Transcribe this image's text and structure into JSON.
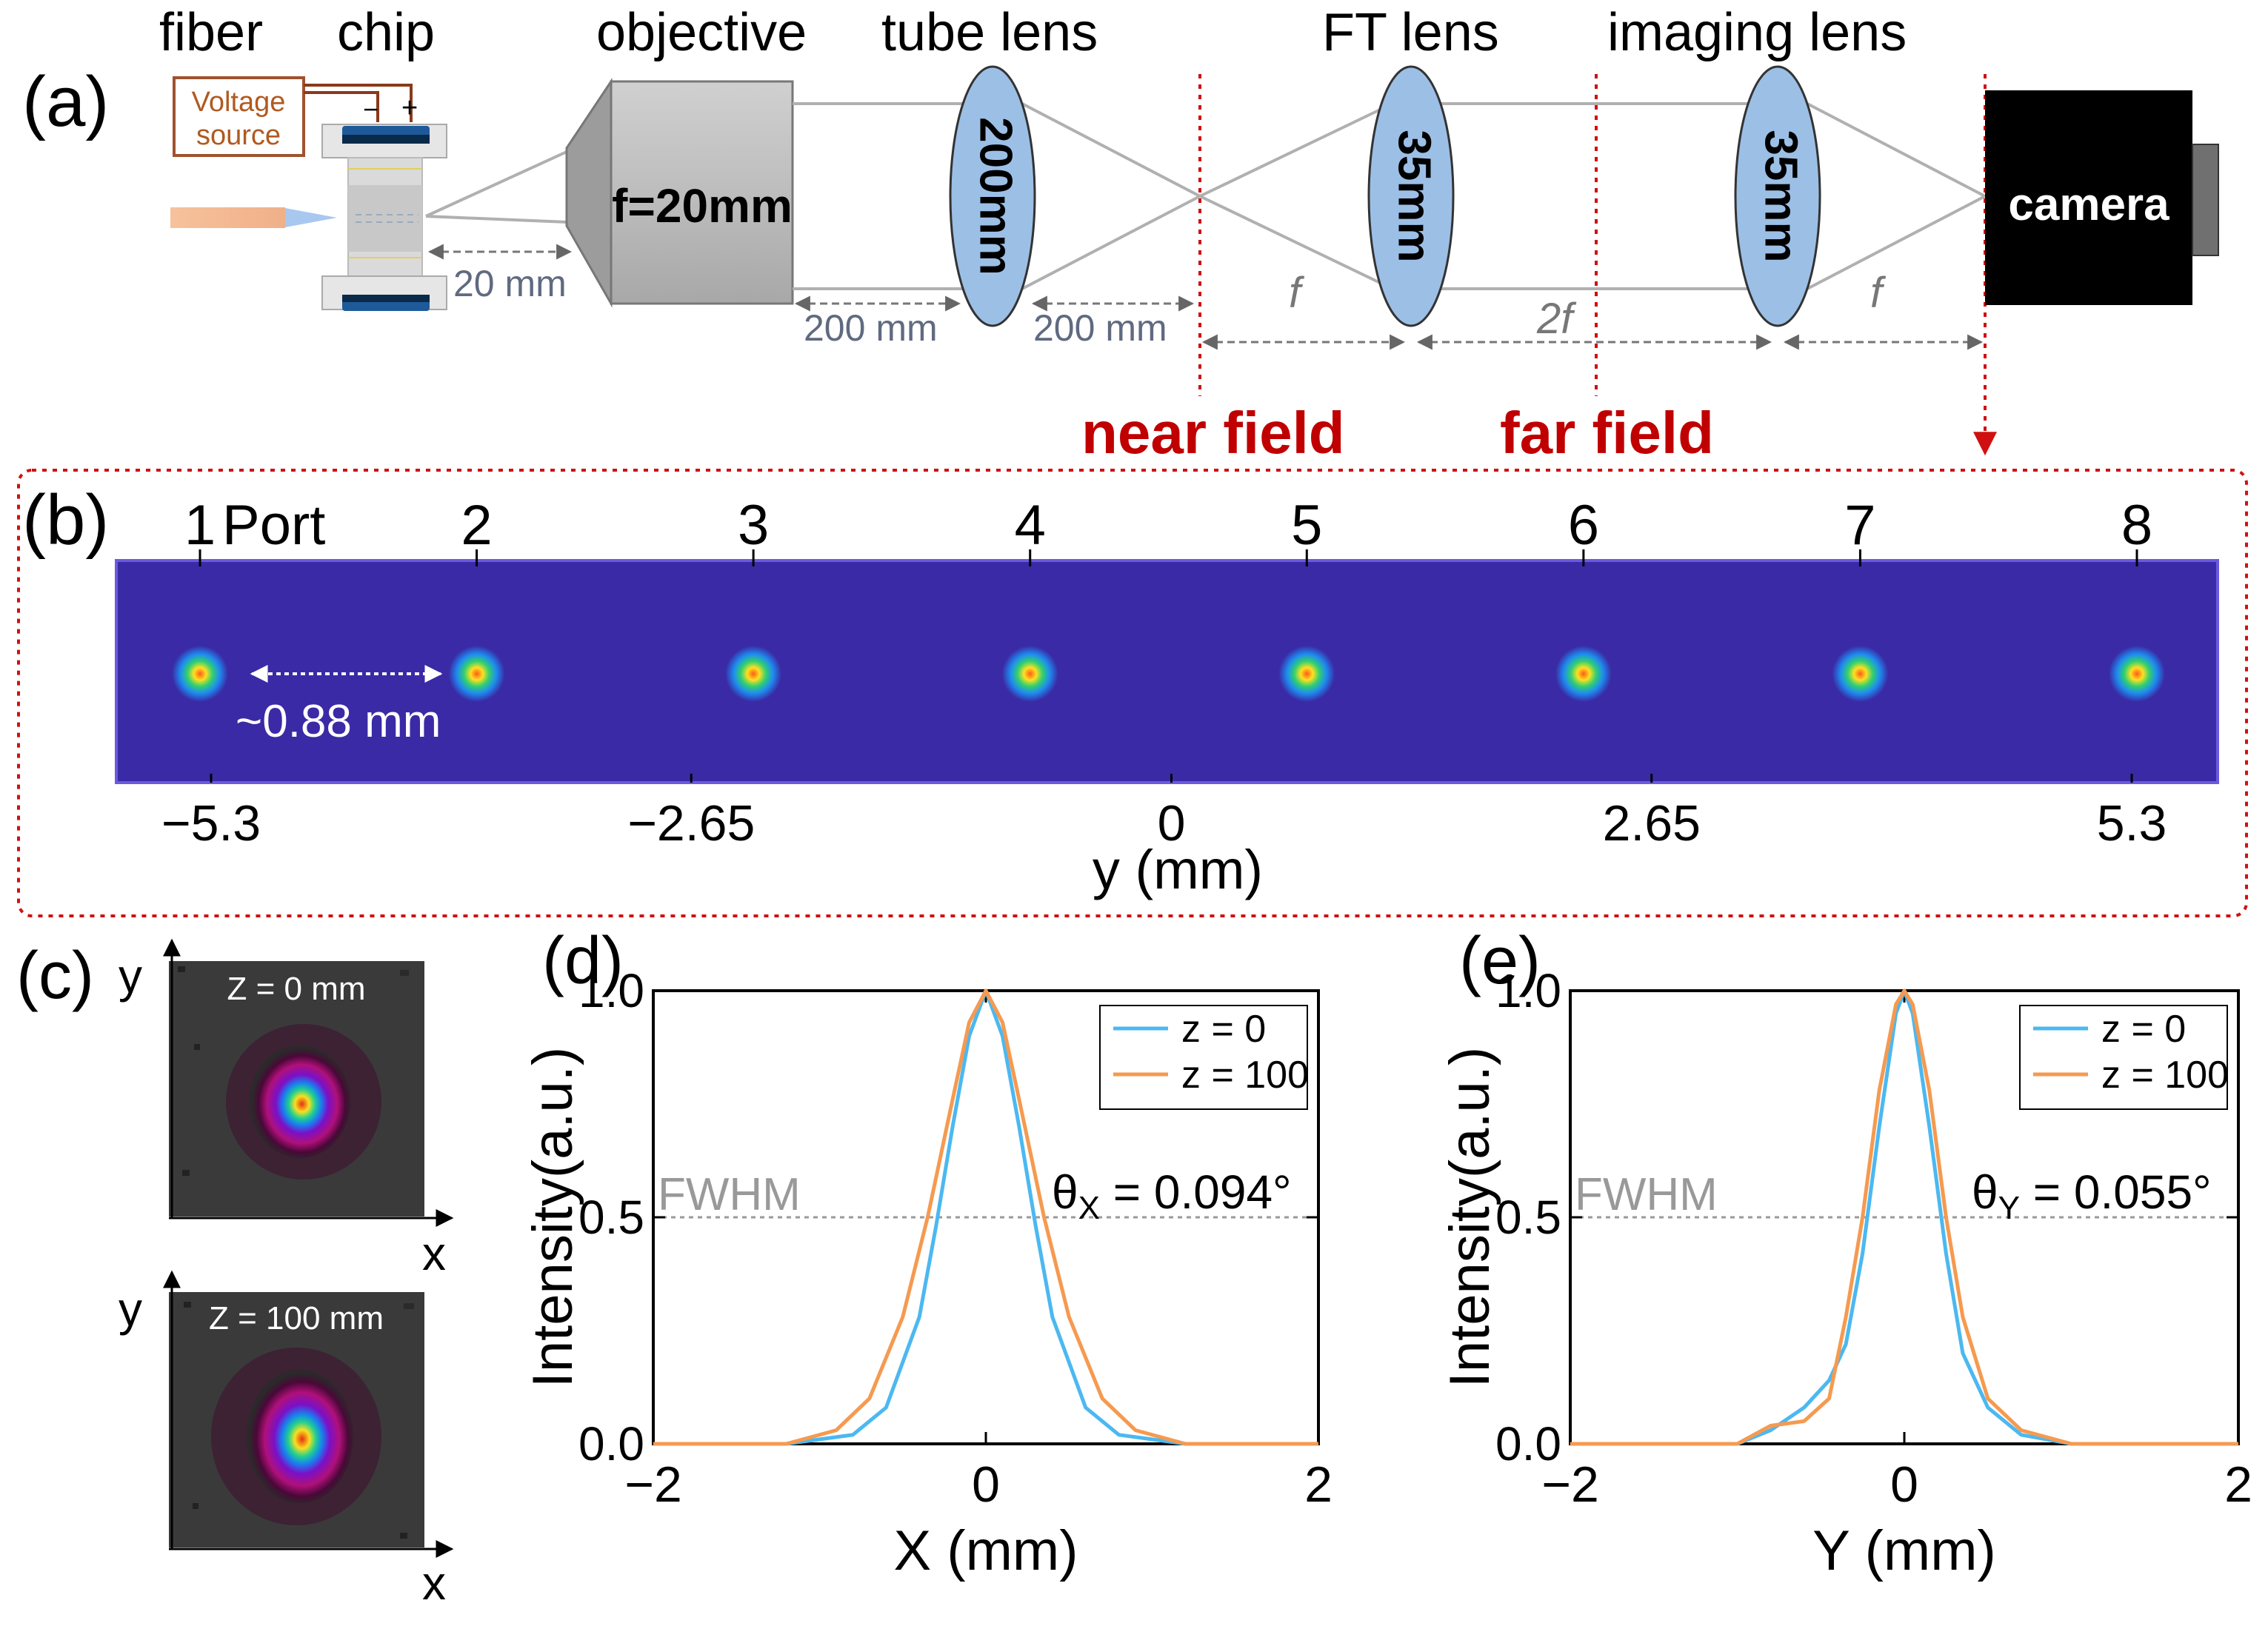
{
  "panel_a": {
    "label": "(a)",
    "headers": [
      "fiber",
      "chip",
      "objective",
      "tube lens",
      "FT lens",
      "imaging lens"
    ],
    "voltage_source": [
      "Voltage",
      "source"
    ],
    "minus": "−",
    "plus": "+",
    "dist_chip": "20 mm",
    "objective_text": "f=20mm",
    "tube_lens_text": "200mm",
    "dist_200_left": "200 mm",
    "dist_200_right": "200 mm",
    "ft_lens_text": "35mm",
    "imaging_lens_text": "35mm",
    "f_left": "f",
    "two_f": "2f",
    "f_right": "f",
    "camera_text": "camera",
    "near_field": "near field",
    "far_field": "far field",
    "colors": {
      "lens": "#9cbfe6",
      "red": "#c00000",
      "camera": "#000000"
    }
  },
  "panel_b": {
    "label": "(b)",
    "port_word": "Port",
    "port_numbers": [
      "1",
      "2",
      "3",
      "4",
      "5",
      "6",
      "7",
      "8"
    ],
    "spacing": "~0.88 mm",
    "x_ticks": [
      "−5.3",
      "−2.65",
      "0",
      "2.65",
      "5.3"
    ],
    "x_label": "y (mm)",
    "background_color": "#3a2aa6"
  },
  "panel_c": {
    "label": "(c)",
    "images": [
      {
        "title": "Z = 0 mm",
        "ylabel": "y",
        "xlabel": "x"
      },
      {
        "title": "Z = 100 mm",
        "ylabel": "y",
        "xlabel": "x"
      }
    ]
  },
  "chart_data": [
    {
      "type": "line",
      "panel": "(d)",
      "xlabel": "X (mm)",
      "ylabel": "Intensity(a.u.)",
      "xlim": [
        -2,
        2
      ],
      "ylim": [
        0,
        1
      ],
      "x_ticks": [
        "−2",
        "0",
        "2"
      ],
      "y_ticks": [
        "0.0",
        "0.5",
        "1.0"
      ],
      "fwhm_label": "FWHM",
      "annotation": {
        "prefix": "θ",
        "sub": "X",
        "value": " = 0.094°"
      },
      "legend": {
        "location": "top-right"
      },
      "series": [
        {
          "name": "z = 0",
          "color": "#4cb8f0",
          "x": [
            -2.0,
            -1.2,
            -0.8,
            -0.6,
            -0.4,
            -0.3,
            -0.2,
            -0.1,
            0.0,
            0.1,
            0.2,
            0.3,
            0.4,
            0.6,
            0.8,
            1.2,
            2.0
          ],
          "y": [
            0.0,
            0.0,
            0.02,
            0.08,
            0.28,
            0.48,
            0.7,
            0.9,
            1.0,
            0.9,
            0.7,
            0.48,
            0.28,
            0.08,
            0.02,
            0.0,
            0.0
          ]
        },
        {
          "name": "z = 100",
          "color": "#f59a50",
          "x": [
            -2.0,
            -1.2,
            -0.9,
            -0.7,
            -0.5,
            -0.35,
            -0.2,
            -0.1,
            0.0,
            0.1,
            0.2,
            0.35,
            0.5,
            0.7,
            0.9,
            1.2,
            2.0
          ],
          "y": [
            0.0,
            0.0,
            0.03,
            0.1,
            0.28,
            0.5,
            0.76,
            0.93,
            1.0,
            0.93,
            0.76,
            0.5,
            0.28,
            0.1,
            0.03,
            0.0,
            0.0
          ]
        }
      ]
    },
    {
      "type": "line",
      "panel": "(e)",
      "xlabel": "Y (mm)",
      "ylabel": "Intensity(a.u.)",
      "xlim": [
        -2,
        2
      ],
      "ylim": [
        0,
        1
      ],
      "x_ticks": [
        "−2",
        "0",
        "2"
      ],
      "y_ticks": [
        "0.0",
        "0.5",
        "1.0"
      ],
      "fwhm_label": "FWHM",
      "annotation": {
        "prefix": "θ",
        "sub": "Y",
        "value": " = 0.055°"
      },
      "legend": {
        "location": "top-right"
      },
      "series": [
        {
          "name": "z = 0",
          "color": "#4cb8f0",
          "x": [
            -2.0,
            -1.0,
            -0.8,
            -0.6,
            -0.45,
            -0.35,
            -0.25,
            -0.15,
            -0.05,
            0.0,
            0.05,
            0.15,
            0.25,
            0.35,
            0.5,
            0.7,
            1.0,
            2.0
          ],
          "y": [
            0.0,
            0.0,
            0.03,
            0.08,
            0.14,
            0.22,
            0.42,
            0.7,
            0.95,
            1.0,
            0.95,
            0.7,
            0.42,
            0.2,
            0.08,
            0.02,
            0.0,
            0.0
          ]
        },
        {
          "name": "z = 100",
          "color": "#f59a50",
          "x": [
            -2.0,
            -1.0,
            -0.8,
            -0.6,
            -0.45,
            -0.35,
            -0.25,
            -0.15,
            -0.05,
            0.0,
            0.05,
            0.15,
            0.25,
            0.35,
            0.5,
            0.7,
            1.0,
            2.0
          ],
          "y": [
            0.0,
            0.0,
            0.04,
            0.05,
            0.1,
            0.28,
            0.5,
            0.78,
            0.97,
            1.0,
            0.97,
            0.78,
            0.5,
            0.28,
            0.1,
            0.03,
            0.0,
            0.0
          ]
        }
      ]
    }
  ]
}
